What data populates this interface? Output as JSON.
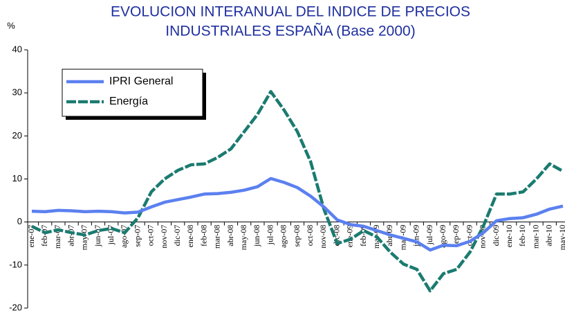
{
  "chart_data": {
    "type": "line",
    "title": "EVOLUCION INTERANUAL DEL INDICE DE PRECIOS",
    "subtitle": "INDUSTRIALES ESPAÑA (Base 2000)",
    "y_label": "%",
    "categories": [
      "ene-07",
      "feb-07",
      "mar-07",
      "abr-07",
      "may-07",
      "jun-07",
      "jul-07",
      "ago-07",
      "sep-07",
      "oct-07",
      "nov-07",
      "dic-07",
      "ene-08",
      "feb-08",
      "mar-08",
      "abr-08",
      "may-08",
      "jun-08",
      "jul-08",
      "ago-08",
      "sep-08",
      "oct-08",
      "nov-08",
      "dic-08",
      "ene-09",
      "feb-09",
      "mar-09",
      "abr-09",
      "may-09",
      "jun-09",
      "jul-09",
      "ago-09",
      "sep-09",
      "oct-09",
      "nov-09",
      "dic-09",
      "ene-10",
      "feb-10",
      "mar-10",
      "abr-10",
      "may-10"
    ],
    "series": [
      {
        "name": "IPRI General",
        "color": "#5b80f0",
        "dashed": false,
        "values": [
          2.5,
          2.4,
          2.7,
          2.6,
          2.4,
          2.5,
          2.4,
          2.1,
          2.3,
          3.5,
          4.6,
          5.2,
          5.8,
          6.5,
          6.6,
          6.9,
          7.4,
          8.2,
          10.1,
          9.2,
          8.0,
          6.0,
          3.5,
          0.5,
          -0.6,
          -1.0,
          -2.0,
          -3.0,
          -3.8,
          -4.6,
          -6.5,
          -5.4,
          -5.5,
          -4.5,
          -2.5,
          0.3,
          0.8,
          1.0,
          1.8,
          3.0,
          3.7
        ]
      },
      {
        "name": "Energía",
        "color": "#1b7b70",
        "dashed": true,
        "values": [
          -1.0,
          -2.5,
          -1.8,
          -2.5,
          -3.0,
          -2.0,
          -1.5,
          -2.5,
          1.0,
          7.0,
          10.0,
          12.0,
          13.3,
          13.5,
          15.0,
          17.0,
          21.0,
          25.0,
          30.3,
          26.0,
          21.0,
          14.0,
          3.0,
          -5.0,
          -4.0,
          -2.0,
          -3.5,
          -7.0,
          -9.8,
          -11.0,
          -16.0,
          -12.0,
          -11.0,
          -7.0,
          -1.0,
          6.5,
          6.5,
          7.0,
          10.0,
          13.5,
          11.8
        ]
      }
    ],
    "ylim": [
      -20,
      40
    ],
    "yticks": [
      -20,
      -10,
      0,
      10,
      20,
      30,
      40
    ],
    "legend": "upper left"
  }
}
